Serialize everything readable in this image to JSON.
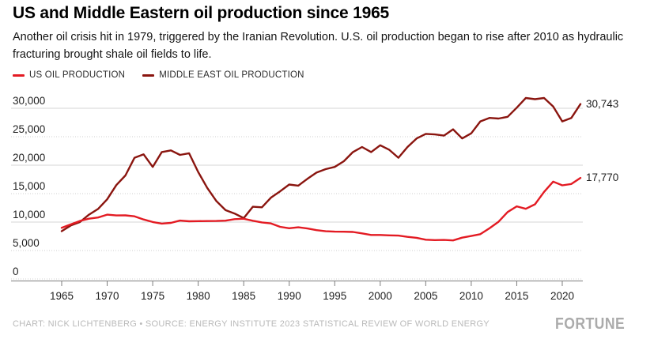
{
  "header": {
    "title": "US and Middle Eastern oil production since 1965",
    "subtitle": "Another oil crisis hit in 1979, triggered by the Iranian Revolution. U.S. oil production began to rise after 2010 as hydraulic fracturing brought shale oil fields to life."
  },
  "legend": [
    {
      "label": "US OIL PRODUCTION",
      "color": "#e31b23"
    },
    {
      "label": "MIDDLE EAST OIL PRODUCTION",
      "color": "#8a150f"
    }
  ],
  "chart_data": {
    "type": "line",
    "title": "US and Middle Eastern oil production since 1965",
    "xlabel": "",
    "ylabel": "",
    "grid": "horizontal",
    "legend_position": "top",
    "ylim": [
      0,
      32500
    ],
    "x_ticks": [
      1965,
      1970,
      1975,
      1980,
      1985,
      1990,
      1995,
      2000,
      2005,
      2010,
      2015,
      2020
    ],
    "y_ticks": [
      {
        "value": 0,
        "label": "0"
      },
      {
        "value": 5000,
        "label": "5,000"
      },
      {
        "value": 10000,
        "label": "10,000"
      },
      {
        "value": 15000,
        "label": "15,000"
      },
      {
        "value": 20000,
        "label": "20,000"
      },
      {
        "value": 25000,
        "label": "25,000"
      },
      {
        "value": 30000,
        "label": "30,000"
      }
    ],
    "x": [
      1965,
      1966,
      1967,
      1968,
      1969,
      1970,
      1971,
      1972,
      1973,
      1974,
      1975,
      1976,
      1977,
      1978,
      1979,
      1980,
      1981,
      1982,
      1983,
      1984,
      1985,
      1986,
      1987,
      1988,
      1989,
      1990,
      1991,
      1992,
      1993,
      1994,
      1995,
      1996,
      1997,
      1998,
      1999,
      2000,
      2001,
      2002,
      2003,
      2004,
      2005,
      2006,
      2007,
      2008,
      2009,
      2010,
      2011,
      2012,
      2013,
      2014,
      2015,
      2016,
      2017,
      2018,
      2019,
      2020,
      2021,
      2022
    ],
    "series": [
      {
        "name": "US OIL PRODUCTION",
        "color": "#e31b23",
        "end_label": "17,770",
        "values": [
          9000,
          9600,
          10200,
          10600,
          10800,
          11300,
          11160,
          11180,
          11010,
          10460,
          10010,
          9740,
          9860,
          10270,
          10140,
          10170,
          10180,
          10200,
          10250,
          10510,
          10580,
          10230,
          9940,
          9760,
          9160,
          8910,
          9080,
          8870,
          8580,
          8390,
          8320,
          8300,
          8270,
          8010,
          7730,
          7730,
          7670,
          7630,
          7400,
          7230,
          6900,
          6840,
          6860,
          6780,
          7260,
          7550,
          7870,
          8900,
          10050,
          11760,
          12770,
          12340,
          13130,
          15310,
          17110,
          16460,
          16690,
          17770
        ]
      },
      {
        "name": "MIDDLE EAST OIL PRODUCTION",
        "color": "#8a150f",
        "end_label": "30,743",
        "values": [
          8400,
          9400,
          10000,
          11300,
          12300,
          14000,
          16500,
          18200,
          21300,
          21900,
          19700,
          22300,
          22600,
          21800,
          22100,
          18800,
          16000,
          13700,
          12100,
          11500,
          10700,
          12700,
          12600,
          14300,
          15400,
          16600,
          16400,
          17600,
          18700,
          19300,
          19700,
          20700,
          22300,
          23200,
          22300,
          23500,
          22700,
          21300,
          23200,
          24700,
          25500,
          25400,
          25200,
          26300,
          24700,
          25600,
          27700,
          28300,
          28200,
          28500,
          30100,
          31800,
          31600,
          31800,
          30300,
          27700,
          28300,
          30743
        ]
      }
    ]
  },
  "footer": {
    "credit": "CHART: NICK LICHTENBERG • SOURCE: ENERGY INSTITUTE 2023 STATISTICAL REVIEW OF WORLD ENERGY",
    "brand": "FORTUNE"
  }
}
